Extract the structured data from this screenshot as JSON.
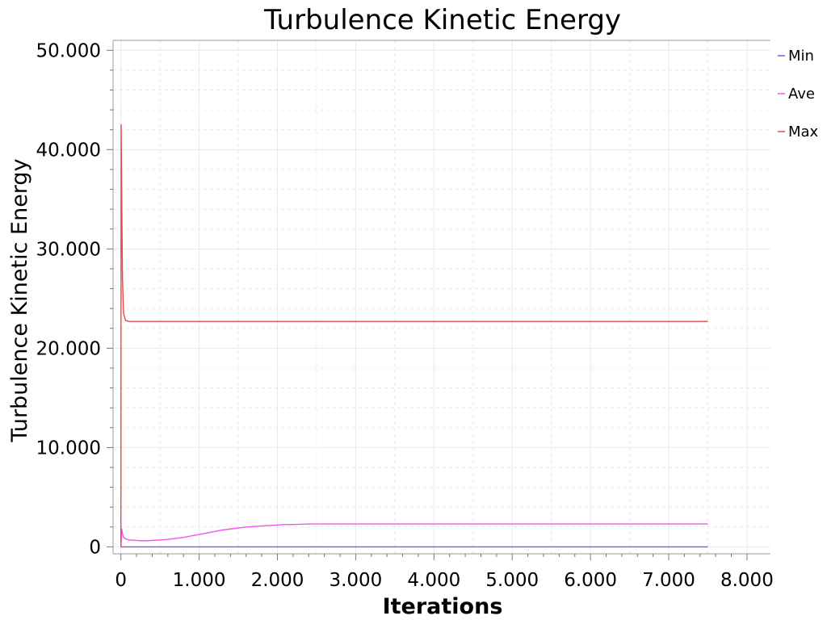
{
  "chart_data": {
    "type": "line",
    "title": "Turbulence Kinetic Energy",
    "xlabel": "Iterations",
    "ylabel": "Turbulence Kinetic Energy",
    "xlim": [
      -100,
      8300
    ],
    "ylim": [
      -700,
      51000
    ],
    "x_ticks": [
      {
        "value": 0,
        "label": "0"
      },
      {
        "value": 1000,
        "label": "1.000"
      },
      {
        "value": 2000,
        "label": "2.000"
      },
      {
        "value": 3000,
        "label": "3.000"
      },
      {
        "value": 4000,
        "label": "4.000"
      },
      {
        "value": 5000,
        "label": "5.000"
      },
      {
        "value": 6000,
        "label": "6.000"
      },
      {
        "value": 7000,
        "label": "7.000"
      },
      {
        "value": 8000,
        "label": "8.000"
      }
    ],
    "y_ticks": [
      {
        "value": 0,
        "label": "0"
      },
      {
        "value": 10000,
        "label": "10.000"
      },
      {
        "value": 20000,
        "label": "20.000"
      },
      {
        "value": 30000,
        "label": "30.000"
      },
      {
        "value": 40000,
        "label": "40.000"
      },
      {
        "value": 50000,
        "label": "50.000"
      }
    ],
    "grid": true,
    "legend_position": "right",
    "series": [
      {
        "name": "Min",
        "color": "#6464e6",
        "points": [
          [
            0,
            0
          ],
          [
            7500,
            0
          ]
        ]
      },
      {
        "name": "Ave",
        "color": "#ee55ee",
        "points": [
          [
            0,
            0
          ],
          [
            10,
            1800
          ],
          [
            30,
            1000
          ],
          [
            60,
            800
          ],
          [
            100,
            700
          ],
          [
            200,
            650
          ],
          [
            300,
            600
          ],
          [
            400,
            650
          ],
          [
            500,
            700
          ],
          [
            600,
            750
          ],
          [
            700,
            850
          ],
          [
            800,
            950
          ],
          [
            900,
            1100
          ],
          [
            1000,
            1250
          ],
          [
            1100,
            1400
          ],
          [
            1200,
            1550
          ],
          [
            1300,
            1700
          ],
          [
            1400,
            1800
          ],
          [
            1500,
            1900
          ],
          [
            1600,
            2000
          ],
          [
            1700,
            2050
          ],
          [
            1800,
            2100
          ],
          [
            1900,
            2150
          ],
          [
            2000,
            2200
          ],
          [
            2100,
            2250
          ],
          [
            2200,
            2250
          ],
          [
            2300,
            2270
          ],
          [
            2400,
            2300
          ],
          [
            3000,
            2300
          ],
          [
            4000,
            2300
          ],
          [
            5000,
            2300
          ],
          [
            6000,
            2300
          ],
          [
            7000,
            2300
          ],
          [
            7500,
            2300
          ]
        ]
      },
      {
        "name": "Max",
        "color": "#e84848",
        "points": [
          [
            0,
            0
          ],
          [
            3,
            42500
          ],
          [
            12,
            34000
          ],
          [
            20,
            27000
          ],
          [
            35,
            23500
          ],
          [
            60,
            22800
          ],
          [
            100,
            22700
          ],
          [
            1000,
            22700
          ],
          [
            3000,
            22700
          ],
          [
            5000,
            22700
          ],
          [
            7500,
            22700
          ]
        ]
      }
    ]
  },
  "colors": {
    "axis": "#9a9a9a",
    "grid": "#e9e9e9"
  }
}
